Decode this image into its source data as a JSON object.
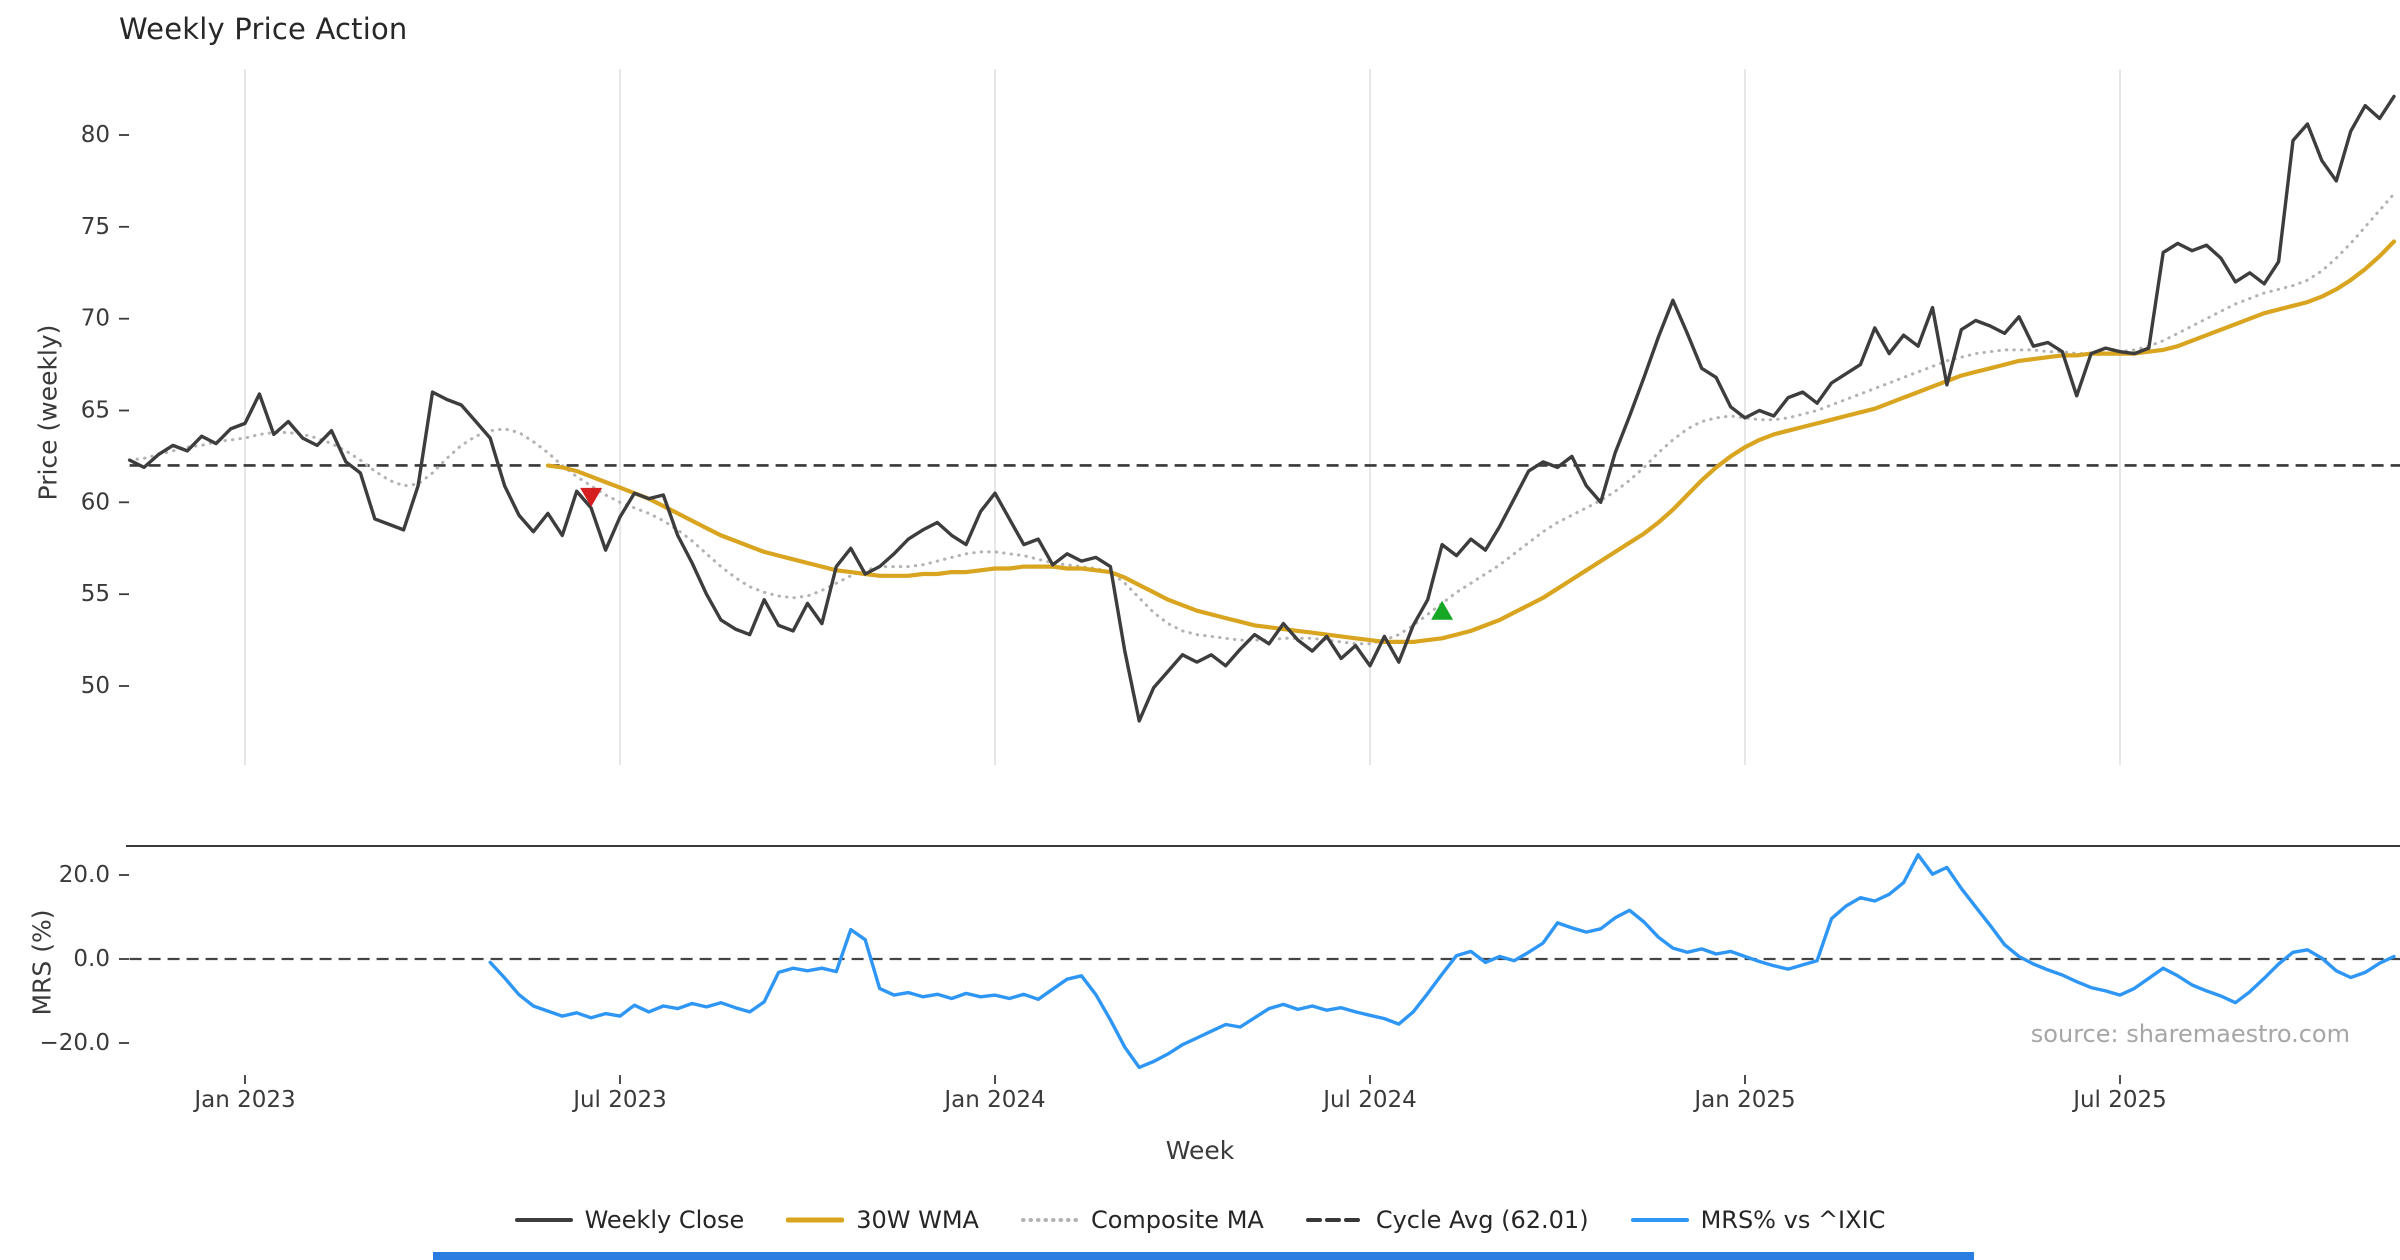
{
  "page": {
    "source_note": "source: sharemaestro.com"
  },
  "footer": {
    "accent_bar_color": "#2a7de1"
  },
  "chart_data": {
    "type": "line",
    "title": "Weekly Price Action",
    "xlabel": "Week",
    "grid": "vertical-light",
    "x_tick_labels": [
      "Jan 2023",
      "Jul 2023",
      "Jan 2024",
      "Jul 2024",
      "Jan 2025",
      "Jul 2025"
    ],
    "x_tick_weeks": [
      8,
      34,
      60,
      86,
      112,
      138
    ],
    "panels": [
      {
        "name": "price",
        "ylabel": "Price (weekly)",
        "ylim": [
          45.7,
          83.6
        ],
        "yticks": [
          50,
          55,
          60,
          65,
          70,
          75,
          80
        ],
        "ytick_labels": [
          "50",
          "55",
          "60",
          "65",
          "70",
          "75",
          "80"
        ],
        "hline": {
          "value": 62.01,
          "label": "Cycle Avg (62.01)",
          "style": "dashed",
          "color": "#383838"
        }
      },
      {
        "name": "mrs",
        "ylabel": "MRS (%)",
        "ylim": [
          -27.5,
          27.0
        ],
        "yticks": [
          -20,
          0,
          20
        ],
        "ytick_labels": [
          "−20.0",
          "0.0",
          "20.0"
        ],
        "hline": {
          "value": 0,
          "style": "dashed",
          "color": "#444444"
        }
      }
    ],
    "series": [
      {
        "name": "Composite MA",
        "panel": "price",
        "color": "#b3b3b3",
        "style": "dotted",
        "width": 3.0,
        "start_week": 0,
        "values": [
          62.3,
          62.4,
          62.6,
          62.8,
          63.0,
          63.1,
          63.3,
          63.4,
          63.5,
          63.7,
          63.8,
          63.8,
          63.7,
          63.5,
          63.2,
          62.8,
          62.3,
          61.7,
          61.2,
          60.9,
          61.0,
          61.6,
          62.4,
          63.1,
          63.6,
          63.9,
          64.0,
          63.8,
          63.3,
          62.7,
          62.0,
          61.4,
          60.9,
          60.4,
          60.0,
          59.7,
          59.4,
          59.0,
          58.5,
          57.9,
          57.2,
          56.5,
          55.9,
          55.4,
          55.1,
          54.9,
          54.8,
          54.9,
          55.2,
          55.6,
          56.0,
          56.3,
          56.5,
          56.5,
          56.5,
          56.6,
          56.8,
          57.0,
          57.2,
          57.3,
          57.3,
          57.2,
          57.1,
          56.9,
          56.7,
          56.6,
          56.5,
          56.4,
          56.2,
          55.6,
          54.8,
          54.0,
          53.4,
          53.0,
          52.8,
          52.7,
          52.6,
          52.5,
          52.5,
          52.5,
          52.6,
          52.6,
          52.6,
          52.5,
          52.4,
          52.3,
          52.3,
          52.5,
          52.8,
          53.3,
          53.9,
          54.5,
          55.1,
          55.6,
          56.1,
          56.6,
          57.2,
          57.8,
          58.4,
          58.9,
          59.3,
          59.7,
          60.1,
          60.6,
          61.2,
          61.9,
          62.7,
          63.4,
          64.0,
          64.4,
          64.6,
          64.7,
          64.6,
          64.5,
          64.5,
          64.6,
          64.8,
          65.0,
          65.3,
          65.6,
          65.9,
          66.2,
          66.5,
          66.8,
          67.1,
          67.4,
          67.7,
          67.9,
          68.1,
          68.2,
          68.3,
          68.3,
          68.3,
          68.2,
          68.2,
          68.1,
          68.1,
          68.1,
          68.2,
          68.3,
          68.5,
          68.8,
          69.2,
          69.6,
          70.0,
          70.4,
          70.8,
          71.1,
          71.4,
          71.6,
          71.8,
          72.1,
          72.6,
          73.3,
          74.1,
          75.0,
          75.9,
          76.8
        ]
      },
      {
        "name": "30W WMA",
        "panel": "price",
        "color": "#d9a41f",
        "style": "solid",
        "width": 4.2,
        "start_week": 29,
        "values": [
          62.0,
          61.9,
          61.7,
          61.4,
          61.1,
          60.8,
          60.5,
          60.2,
          59.8,
          59.4,
          59.0,
          58.6,
          58.2,
          57.9,
          57.6,
          57.3,
          57.1,
          56.9,
          56.7,
          56.5,
          56.3,
          56.2,
          56.1,
          56.0,
          56.0,
          56.0,
          56.1,
          56.1,
          56.2,
          56.2,
          56.3,
          56.4,
          56.4,
          56.5,
          56.5,
          56.5,
          56.4,
          56.4,
          56.3,
          56.2,
          55.9,
          55.5,
          55.1,
          54.7,
          54.4,
          54.1,
          53.9,
          53.7,
          53.5,
          53.3,
          53.2,
          53.1,
          53.0,
          52.9,
          52.8,
          52.7,
          52.6,
          52.5,
          52.4,
          52.4,
          52.4,
          52.5,
          52.6,
          52.8,
          53.0,
          53.3,
          53.6,
          54.0,
          54.4,
          54.8,
          55.3,
          55.8,
          56.3,
          56.8,
          57.3,
          57.8,
          58.3,
          58.9,
          59.6,
          60.4,
          61.2,
          61.9,
          62.5,
          63.0,
          63.4,
          63.7,
          63.9,
          64.1,
          64.3,
          64.5,
          64.7,
          64.9,
          65.1,
          65.4,
          65.7,
          66.0,
          66.3,
          66.6,
          66.9,
          67.1,
          67.3,
          67.5,
          67.7,
          67.8,
          67.9,
          68.0,
          68.0,
          68.1,
          68.1,
          68.1,
          68.1,
          68.2,
          68.3,
          68.5,
          68.8,
          69.1,
          69.4,
          69.7,
          70.0,
          70.3,
          70.5,
          70.7,
          70.9,
          71.2,
          71.6,
          72.1,
          72.7,
          73.4,
          74.2
        ]
      },
      {
        "name": "Weekly Close",
        "panel": "price",
        "color": "#3d3d3d",
        "style": "solid",
        "width": 3.4,
        "start_week": 0,
        "values": [
          62.3,
          61.9,
          62.6,
          63.1,
          62.8,
          63.6,
          63.2,
          64.0,
          64.3,
          65.9,
          63.7,
          64.4,
          63.5,
          63.1,
          63.9,
          62.2,
          61.6,
          59.1,
          58.8,
          58.5,
          60.9,
          66.0,
          65.6,
          65.3,
          64.4,
          63.5,
          60.9,
          59.3,
          58.4,
          59.4,
          58.2,
          60.6,
          59.7,
          57.4,
          59.2,
          60.5,
          60.2,
          60.4,
          58.2,
          56.7,
          55.0,
          53.6,
          53.1,
          52.8,
          54.7,
          53.3,
          53.0,
          54.5,
          53.4,
          56.5,
          57.5,
          56.1,
          56.5,
          57.2,
          58.0,
          58.5,
          58.9,
          58.2,
          57.7,
          59.5,
          60.5,
          59.1,
          57.7,
          58.0,
          56.6,
          57.2,
          56.8,
          57.0,
          56.5,
          51.9,
          48.1,
          49.9,
          50.8,
          51.7,
          51.3,
          51.7,
          51.1,
          52.0,
          52.8,
          52.3,
          53.4,
          52.5,
          51.9,
          52.7,
          51.5,
          52.2,
          51.1,
          52.7,
          51.3,
          53.3,
          54.7,
          57.7,
          57.1,
          58.0,
          57.4,
          58.7,
          60.2,
          61.7,
          62.2,
          61.9,
          62.5,
          60.9,
          60.0,
          62.7,
          64.7,
          66.8,
          69.0,
          71.0,
          69.2,
          67.3,
          66.8,
          65.2,
          64.6,
          65.0,
          64.7,
          65.7,
          66.0,
          65.4,
          66.5,
          67.0,
          67.5,
          69.5,
          68.1,
          69.1,
          68.5,
          70.6,
          66.4,
          69.4,
          69.9,
          69.6,
          69.2,
          70.1,
          68.5,
          68.7,
          68.2,
          65.8,
          68.1,
          68.4,
          68.2,
          68.1,
          68.4,
          73.6,
          74.1,
          73.7,
          74.0,
          73.3,
          72.0,
          72.5,
          71.9,
          73.1,
          79.7,
          80.6,
          78.6,
          77.5,
          80.2,
          81.6,
          80.9,
          82.1
        ]
      },
      {
        "name": "MRS% vs ^IXIC",
        "panel": "mrs",
        "color": "#2e96f5",
        "style": "solid",
        "width": 3.4,
        "start_week": 25,
        "values": [
          -0.8,
          -4.5,
          -8.5,
          -11.2,
          -12.4,
          -13.6,
          -12.8,
          -14.0,
          -13.0,
          -13.6,
          -11.0,
          -12.6,
          -11.2,
          -11.8,
          -10.6,
          -11.4,
          -10.4,
          -11.6,
          -12.6,
          -10.2,
          -3.2,
          -2.2,
          -2.8,
          -2.2,
          -3.0,
          7.0,
          4.6,
          -7.0,
          -8.6,
          -8.0,
          -9.0,
          -8.4,
          -9.4,
          -8.2,
          -9.0,
          -8.6,
          -9.4,
          -8.4,
          -9.6,
          -7.2,
          -4.8,
          -4.0,
          -8.5,
          -14.5,
          -21.0,
          -25.8,
          -24.4,
          -22.6,
          -20.4,
          -18.8,
          -17.2,
          -15.6,
          -16.2,
          -14.0,
          -11.8,
          -10.8,
          -12.0,
          -11.2,
          -12.2,
          -11.6,
          -12.6,
          -13.4,
          -14.2,
          -15.5,
          -12.6,
          -8.2,
          -3.6,
          0.8,
          1.8,
          -0.8,
          0.6,
          -0.4,
          1.6,
          3.8,
          8.6,
          7.4,
          6.4,
          7.2,
          9.8,
          11.6,
          8.8,
          5.2,
          2.6,
          1.6,
          2.4,
          1.2,
          1.8,
          0.6,
          -0.6,
          -1.6,
          -2.4,
          -1.4,
          -0.4,
          9.6,
          12.6,
          14.6,
          13.8,
          15.4,
          18.2,
          24.8,
          20.2,
          21.8,
          16.8,
          12.4,
          8.0,
          3.4,
          0.6,
          -1.2,
          -2.6,
          -3.8,
          -5.4,
          -6.8,
          -7.6,
          -8.6,
          -7.0,
          -4.6,
          -2.2,
          -4.0,
          -6.2,
          -7.6,
          -8.8,
          -10.4,
          -7.8,
          -4.6,
          -1.2,
          1.6,
          2.2,
          0.2,
          -2.8,
          -4.4,
          -3.2,
          -1.0,
          0.6
        ]
      }
    ],
    "markers": [
      {
        "shape": "triangle-down",
        "color": "#d62020",
        "week": 32,
        "value": 60.3,
        "panel": "price"
      },
      {
        "shape": "triangle-up",
        "color": "#16a724",
        "week": 91,
        "value": 54.1,
        "panel": "price"
      }
    ],
    "legend": {
      "position": "bottom",
      "items": [
        {
          "label": "Weekly Close",
          "color": "#3d3d3d",
          "style": "solid"
        },
        {
          "label": "30W WMA",
          "color": "#d9a41f",
          "style": "solid"
        },
        {
          "label": "Composite MA",
          "color": "#b3b3b3",
          "style": "dotted"
        },
        {
          "label": "Cycle Avg (62.01)",
          "color": "#383838",
          "style": "dashed"
        },
        {
          "label": "MRS% vs ^IXIC",
          "color": "#2e96f5",
          "style": "solid"
        }
      ]
    }
  }
}
